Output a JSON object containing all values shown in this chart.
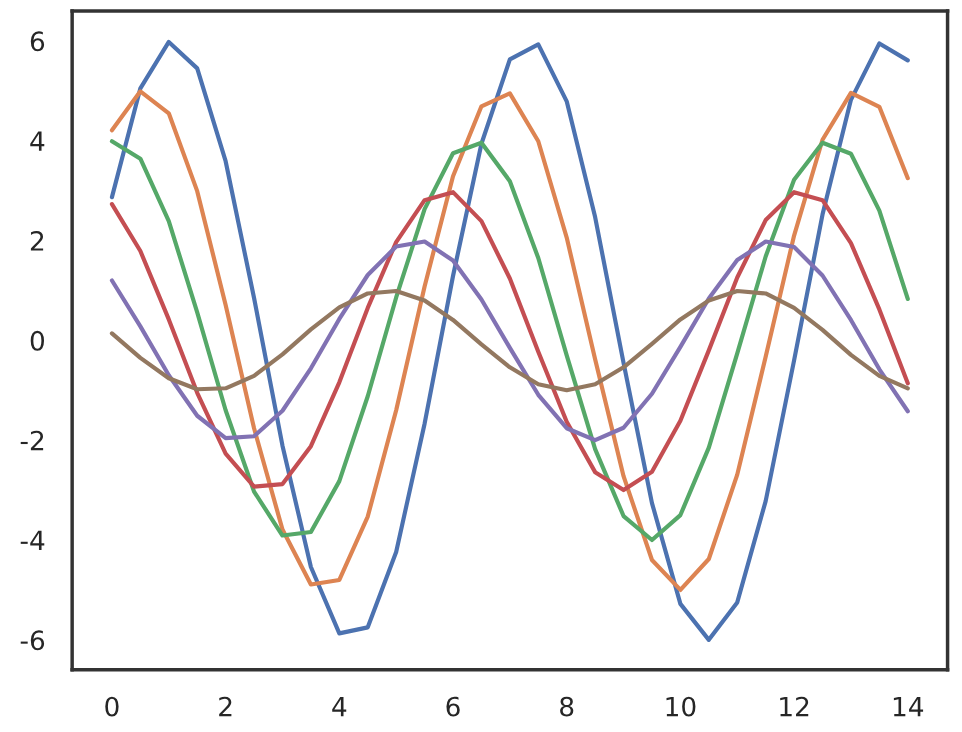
{
  "chart_data": {
    "type": "line",
    "x": [
      0,
      0.5,
      1,
      1.5,
      2,
      2.5,
      3,
      3.5,
      4,
      4.5,
      5,
      5.5,
      6,
      6.5,
      7,
      7.5,
      8,
      8.5,
      9,
      9.5,
      10,
      10.5,
      11,
      11.5,
      12,
      12.5,
      13,
      13.5,
      14
    ],
    "series": [
      {
        "color": "#4c72b0",
        "values": [
          2.87,
          5.05,
          5.98,
          5.45,
          3.59,
          0.85,
          -2.11,
          -4.54,
          -5.87,
          -5.75,
          -4.24,
          -1.67,
          1.29,
          3.94,
          5.63,
          5.93,
          4.79,
          2.47,
          -0.45,
          -3.26,
          -5.28,
          -6.0,
          -5.25,
          -3.22,
          -0.4,
          2.52,
          4.82,
          5.95,
          5.61
        ]
      },
      {
        "color": "#dd8452",
        "values": [
          4.21,
          4.99,
          4.55,
          2.99,
          0.71,
          -1.76,
          -3.79,
          -4.89,
          -4.8,
          -3.53,
          -1.4,
          1.08,
          3.29,
          4.69,
          4.95,
          3.99,
          2.06,
          -0.38,
          -2.72,
          -4.4,
          -5.0,
          -4.38,
          -2.69,
          -0.33,
          2.1,
          4.02,
          4.96,
          4.68,
          3.25
        ]
      },
      {
        "color": "#55a868",
        "values": [
          3.99,
          3.64,
          2.39,
          0.56,
          -1.4,
          -3.03,
          -3.91,
          -3.84,
          -2.82,
          -1.12,
          0.86,
          2.63,
          3.75,
          3.96,
          3.19,
          1.65,
          -0.3,
          -2.18,
          -3.52,
          -4.0,
          -3.5,
          -2.15,
          -0.26,
          1.68,
          3.22,
          3.96,
          3.74,
          2.6,
          0.83
        ]
      },
      {
        "color": "#c44e52",
        "values": [
          2.73,
          1.79,
          0.42,
          -1.05,
          -2.27,
          -2.93,
          -2.88,
          -2.12,
          -0.84,
          0.65,
          1.97,
          2.81,
          2.97,
          2.39,
          1.24,
          -0.23,
          -1.63,
          -2.64,
          -3.0,
          -2.63,
          -1.61,
          -0.2,
          1.26,
          2.41,
          2.97,
          2.81,
          1.95,
          0.62,
          -0.86
        ]
      },
      {
        "color": "#8172b3",
        "values": [
          1.2,
          0.28,
          -0.7,
          -1.51,
          -1.96,
          -1.92,
          -1.41,
          -0.56,
          0.43,
          1.31,
          1.88,
          1.98,
          1.6,
          0.82,
          -0.15,
          -1.09,
          -1.76,
          -2.0,
          -1.75,
          -1.07,
          -0.13,
          0.84,
          1.61,
          1.98,
          1.87,
          1.3,
          0.41,
          -0.58,
          -1.42
        ]
      },
      {
        "color": "#937860",
        "values": [
          0.14,
          -0.35,
          -0.76,
          -0.98,
          -0.96,
          -0.71,
          -0.28,
          0.22,
          0.66,
          0.94,
          0.99,
          0.8,
          0.41,
          -0.08,
          -0.54,
          -0.88,
          -1.0,
          -0.88,
          -0.54,
          -0.07,
          0.42,
          0.8,
          0.99,
          0.94,
          0.65,
          0.21,
          -0.29,
          -0.71,
          -0.96
        ]
      }
    ],
    "xlim": [
      -0.7,
      14.7
    ],
    "ylim": [
      -6.6,
      6.6
    ],
    "xticks": [
      0,
      2,
      4,
      6,
      8,
      10,
      12,
      14
    ],
    "yticks": [
      -6,
      -4,
      -2,
      0,
      2,
      4,
      6
    ],
    "grid": false,
    "marker": "none",
    "line_style": "solid"
  }
}
